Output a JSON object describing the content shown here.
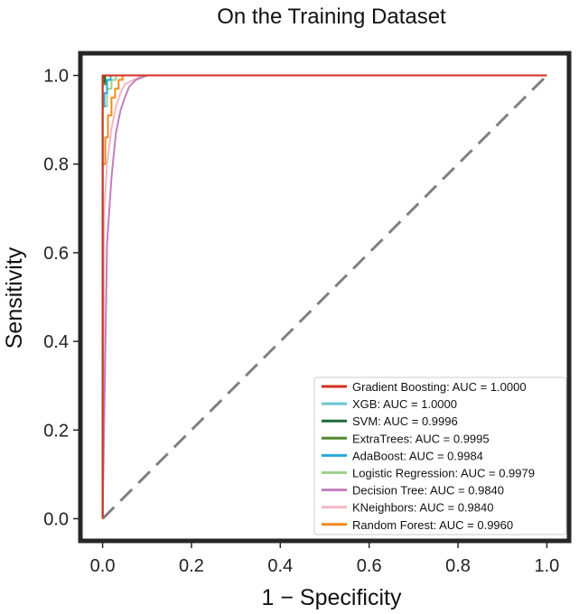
{
  "chart_data": {
    "type": "line",
    "title": "On the Training Dataset",
    "xlabel": "1 − Specificity",
    "ylabel": "Sensitivity",
    "xlim": [
      -0.05,
      1.05
    ],
    "ylim": [
      -0.05,
      1.05
    ],
    "xticks": [
      "0.0",
      "0.2",
      "0.4",
      "0.6",
      "0.8",
      "1.0"
    ],
    "yticks": [
      "0.0",
      "0.2",
      "0.4",
      "0.6",
      "0.8",
      "1.0"
    ],
    "legend_position": "bottom-right",
    "grid": false,
    "reference_line": {
      "x": [
        0,
        1
      ],
      "y": [
        0,
        1
      ],
      "style": "dashed",
      "color": "#808080"
    },
    "series": [
      {
        "name": "Gradient Boosting: AUC = 1.0000",
        "color": "#d62f1f",
        "x": [
          0,
          0,
          1
        ],
        "y": [
          0,
          1,
          1
        ]
      },
      {
        "name": "XGB: AUC = 1.0000",
        "color": "#6cc5d1",
        "x": [
          0,
          0,
          1
        ],
        "y": [
          0,
          1,
          1
        ]
      },
      {
        "name": "SVM: AUC = 0.9996",
        "color": "#1b6b3a",
        "x": [
          0,
          0,
          0.004,
          0.004,
          1
        ],
        "y": [
          0,
          0.985,
          0.985,
          1,
          1
        ]
      },
      {
        "name": "ExtraTrees:  AUC = 0.9995",
        "color": "#4f8a2f",
        "x": [
          0,
          0,
          0.006,
          0.006,
          1
        ],
        "y": [
          0,
          0.98,
          0.98,
          1,
          1
        ]
      },
      {
        "name": "AdaBoost: AUC = 0.9984",
        "color": "#28a9d8",
        "x": [
          0,
          0,
          0.004,
          0.004,
          0.01,
          0.01,
          0.018,
          0.018,
          1
        ],
        "y": [
          0,
          0.93,
          0.93,
          0.96,
          0.96,
          0.99,
          0.99,
          1,
          1
        ]
      },
      {
        "name": "Logistic Regression: AUC = 0.9979",
        "color": "#9fd18b",
        "x": [
          0,
          0,
          0.01,
          0.01,
          0.02,
          0.02,
          0.03,
          0.03,
          1
        ],
        "y": [
          0,
          0.93,
          0.93,
          0.97,
          0.97,
          0.99,
          0.99,
          1,
          1
        ]
      },
      {
        "name": "Decision Tree: AUC = 0.9840",
        "color": "#c07fbf",
        "x": [
          0,
          0.01,
          0.02,
          0.03,
          0.04,
          0.05,
          0.06,
          0.075,
          0.1,
          1
        ],
        "y": [
          0,
          0.62,
          0.77,
          0.87,
          0.92,
          0.95,
          0.975,
          0.99,
          1,
          1
        ]
      },
      {
        "name": "KNeighbors: AUC = 0.9840",
        "color": "#f2b8c6",
        "x": [
          0,
          0.004,
          0.01,
          0.02,
          0.03,
          0.04,
          0.05,
          0.07,
          0.09,
          1
        ],
        "y": [
          0,
          0.7,
          0.8,
          0.88,
          0.93,
          0.96,
          0.98,
          0.99,
          1,
          1
        ]
      },
      {
        "name": "Random Forest: AUC = 0.9960",
        "color": "#ef8a1c",
        "x": [
          0,
          0,
          0.006,
          0.006,
          0.012,
          0.012,
          0.02,
          0.02,
          0.028,
          0.028,
          0.036,
          0.036,
          0.045,
          0.045,
          1
        ],
        "y": [
          0,
          0.8,
          0.8,
          0.86,
          0.86,
          0.91,
          0.91,
          0.95,
          0.95,
          0.97,
          0.97,
          0.99,
          0.99,
          1,
          1
        ]
      }
    ]
  }
}
